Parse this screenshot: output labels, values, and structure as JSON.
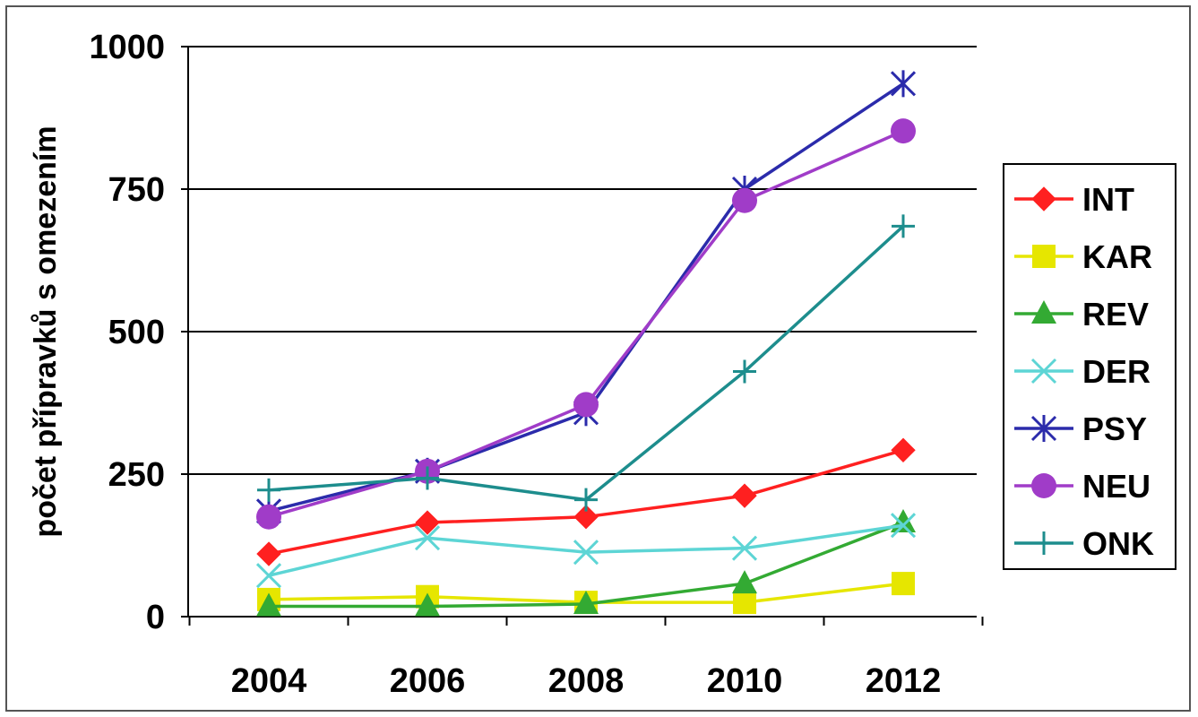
{
  "chart_data": {
    "type": "line",
    "title": "",
    "xlabel": "",
    "ylabel": "počet přípravků s omezením",
    "categories": [
      "2004",
      "2006",
      "2008",
      "2010",
      "2012"
    ],
    "yticks": [
      "0",
      "250",
      "500",
      "750",
      "1000"
    ],
    "ylim": [
      0,
      1000
    ],
    "grid": "horizontal",
    "legend_position": "right",
    "series": [
      {
        "name": "INT",
        "values": [
          110,
          165,
          175,
          212,
          292
        ],
        "color": "#ff2020",
        "marker": "diamond"
      },
      {
        "name": "KAR",
        "values": [
          30,
          35,
          25,
          25,
          58
        ],
        "color": "#e6e600",
        "marker": "square"
      },
      {
        "name": "REV",
        "values": [
          18,
          18,
          22,
          58,
          165
        ],
        "color": "#33aa33",
        "marker": "triangle"
      },
      {
        "name": "DER",
        "values": [
          72,
          138,
          113,
          120,
          160
        ],
        "color": "#5dd5d5",
        "marker": "x"
      },
      {
        "name": "PSY",
        "values": [
          185,
          255,
          358,
          750,
          935
        ],
        "color": "#2b2bab",
        "marker": "star"
      },
      {
        "name": "NEU",
        "values": [
          175,
          255,
          372,
          730,
          852
        ],
        "color": "#a03cc8",
        "marker": "circle"
      },
      {
        "name": "ONK",
        "values": [
          222,
          243,
          205,
          430,
          685
        ],
        "color": "#1d8d8d",
        "marker": "plus"
      }
    ]
  }
}
